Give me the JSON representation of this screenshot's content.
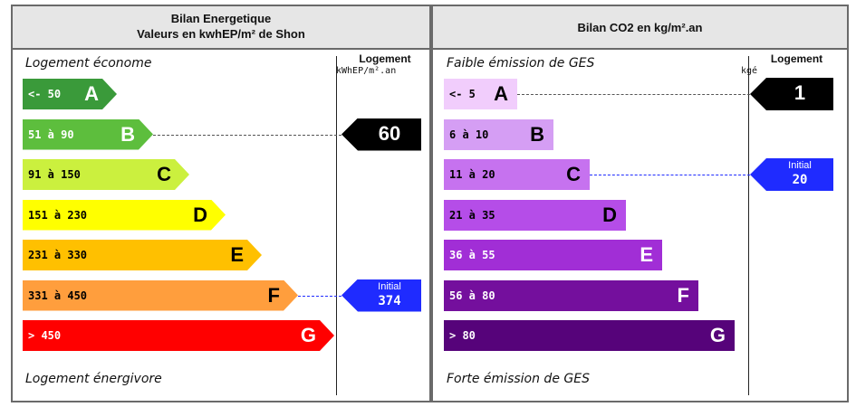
{
  "energy": {
    "header_line1": "Bilan Energetique",
    "header_line2": "Valeurs en kwhEP/m² de Shon",
    "top_caption": "Logement économe",
    "bottom_caption": "Logement énergivore",
    "column_title": "Logement",
    "column_unit": "kWhEP/m².an",
    "classes": [
      {
        "range": "<- 50",
        "letter": "A",
        "color": "#3a9a3a",
        "text_color": "#ffffff"
      },
      {
        "range": "51 à 90",
        "letter": "B",
        "color": "#5dbe3d",
        "text_color": "#ffffff"
      },
      {
        "range": "91 à 150",
        "letter": "C",
        "color": "#cbf03e",
        "text_color": "#000000"
      },
      {
        "range": "151 à 230",
        "letter": "D",
        "color": "#ffff00",
        "text_color": "#000000"
      },
      {
        "range": "231 à 330",
        "letter": "E",
        "color": "#ffc000",
        "text_color": "#000000"
      },
      {
        "range": "331 à 450",
        "letter": "F",
        "color": "#ff9e3d",
        "text_color": "#000000"
      },
      {
        "range": "> 450",
        "letter": "G",
        "color": "#ff0000",
        "text_color": "#ffffff"
      }
    ],
    "current": {
      "value": "60",
      "class": "B",
      "color": "#000000"
    },
    "initial": {
      "label": "Initial",
      "value": "374",
      "class": "F",
      "color": "#1f2bff"
    }
  },
  "ges": {
    "header": "Bilan CO2 en kg/m².an",
    "top_caption": "Faible émission de GES",
    "bottom_caption": "Forte émission de GES",
    "column_title": "Logement",
    "column_unit": "kgé",
    "classes": [
      {
        "range": "<- 5",
        "letter": "A",
        "color": "#f1cdfc",
        "text_color": "#000000"
      },
      {
        "range": "6 à 10",
        "letter": "B",
        "color": "#d59ef4",
        "text_color": "#000000"
      },
      {
        "range": "11 à 20",
        "letter": "C",
        "color": "#c672ef",
        "text_color": "#000000"
      },
      {
        "range": "21 à 35",
        "letter": "D",
        "color": "#b54de8",
        "text_color": "#000000"
      },
      {
        "range": "36 à 55",
        "letter": "E",
        "color": "#a12ed6",
        "text_color": "#ffffff"
      },
      {
        "range": "56 à 80",
        "letter": "F",
        "color": "#740f9d",
        "text_color": "#ffffff"
      },
      {
        "range": "> 80",
        "letter": "G",
        "color": "#56037a",
        "text_color": "#ffffff"
      }
    ],
    "current": {
      "value": "1",
      "class": "A",
      "color": "#000000"
    },
    "initial": {
      "label": "Initial",
      "value": "20",
      "class": "C",
      "color": "#1f2bff"
    }
  }
}
